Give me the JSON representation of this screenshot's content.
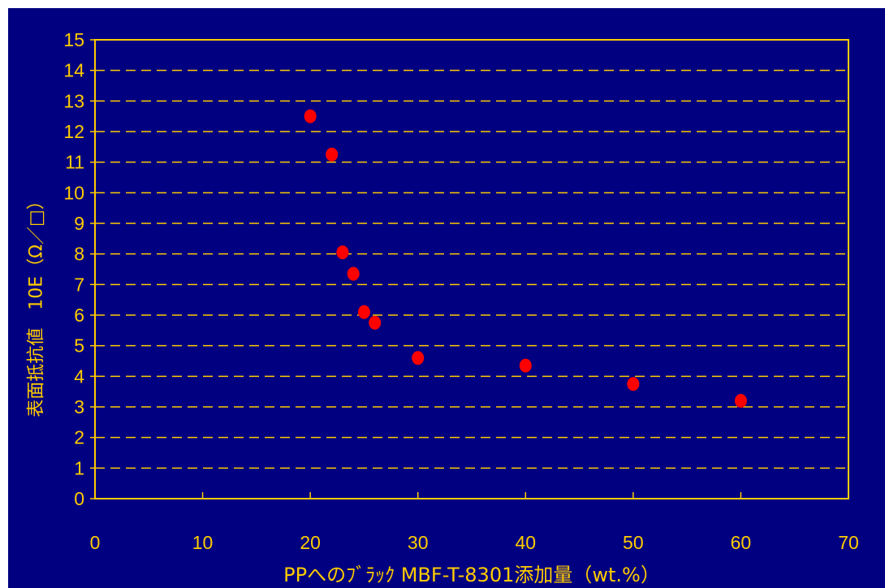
{
  "chart_data": {
    "type": "scatter",
    "title": "",
    "xlabel": "PPへのﾌﾞﾗｯｸ MBF-T-8301添加量（wt.%）",
    "ylabel": "表面抵抗値　10E（Ω／□）",
    "xlim": [
      0,
      70
    ],
    "ylim": [
      0,
      15
    ],
    "x_ticks": [
      0,
      10,
      20,
      30,
      40,
      50,
      60,
      70
    ],
    "y_ticks": [
      0,
      1,
      2,
      3,
      4,
      5,
      6,
      7,
      8,
      9,
      10,
      11,
      12,
      13,
      14,
      15
    ],
    "grid": "horizontal dashed",
    "legend": "none",
    "series": [
      {
        "x": [
          20,
          22,
          23,
          24,
          25,
          26,
          30,
          40,
          50,
          60
        ],
        "y": [
          12.5,
          11.25,
          8.05,
          7.35,
          6.1,
          5.75,
          4.6,
          4.35,
          3.75,
          3.2
        ]
      }
    ],
    "colors": {
      "background": "#000080",
      "axis": "#FFCC00",
      "text": "#FFCC00",
      "points": "#FF0000"
    }
  }
}
